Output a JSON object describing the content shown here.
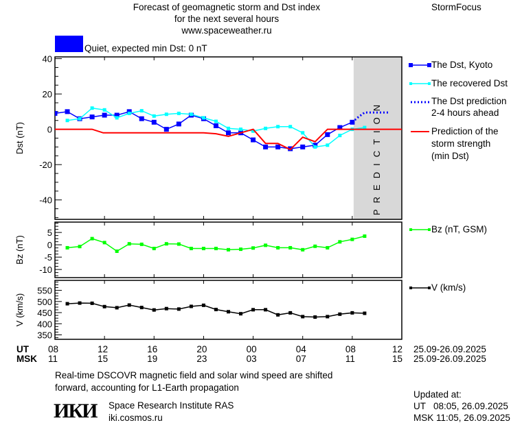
{
  "header": {
    "title_lines": [
      "Forecast of geomagnetic storm and Dst index",
      "for the next several hours",
      "www.spaceweather.ru"
    ],
    "brand": "StormFocus",
    "status_text": "Quiet, expected min Dst: 0 nT",
    "status_color": "#0000ff"
  },
  "chart_data": [
    {
      "type": "line",
      "panel": "dst",
      "ylabel": "Dst (nT)",
      "ylim": [
        -51,
        41
      ],
      "yticks": [
        40,
        20,
        0,
        -20,
        -40
      ],
      "xlim": [
        0,
        28
      ],
      "x_unit": "hours since 08 UT 25.09.2025",
      "prediction_zone": {
        "from": 24,
        "to": 28,
        "label": "PREDICTION",
        "color": "#d8d8d8"
      },
      "series": [
        {
          "name": "The Dst, Kyoto",
          "color": "#0000ff",
          "marker": "square",
          "x": [
            0,
            1,
            2,
            3,
            4,
            5,
            6,
            7,
            8,
            9,
            10,
            11,
            12,
            13,
            14,
            15,
            16,
            17,
            18,
            19,
            20,
            21,
            22,
            23,
            24
          ],
          "y": [
            9,
            10,
            6,
            7,
            8,
            8,
            10,
            6,
            4,
            0,
            3,
            8,
            6,
            2,
            -2,
            -2,
            -6,
            -10,
            -10,
            -11,
            -10,
            -9,
            -3,
            1,
            4
          ]
        },
        {
          "name": "The recovered Dst",
          "color": "#00ffff",
          "marker": "square",
          "x": [
            1,
            2,
            3,
            4,
            5,
            6,
            7,
            8,
            9,
            10,
            11,
            12,
            13,
            14,
            15,
            16,
            17,
            18,
            19,
            20,
            21,
            22,
            23,
            24,
            25
          ],
          "y": [
            5,
            6,
            12,
            11,
            6.5,
            9,
            10.5,
            7.5,
            8.5,
            9,
            8.5,
            6.5,
            4.5,
            0.5,
            0,
            -1,
            0.5,
            1.5,
            1.5,
            -2,
            -10,
            -9,
            -3.5,
            0,
            1
          ]
        },
        {
          "name": "The Dst prediction 2-4 hours ahead",
          "color": "#0000ff",
          "style": "dotted",
          "x": [
            24,
            24.5,
            25,
            27
          ],
          "y": [
            4,
            7,
            9.5,
            9.5
          ]
        },
        {
          "name": "Prediction of the storm strength (min Dst)",
          "color": "#ff0000",
          "x": [
            0,
            3,
            3.9,
            12,
            13,
            14,
            15,
            16,
            17,
            18,
            19,
            20,
            21,
            22,
            28
          ],
          "y": [
            0,
            0,
            -2,
            -2,
            -2.5,
            -4,
            -2,
            0,
            -8,
            -8,
            -11.5,
            -4.5,
            -7,
            0,
            0
          ]
        }
      ]
    },
    {
      "type": "line",
      "panel": "bz",
      "ylabel": "Bz (nT)",
      "ylim": [
        -13.3,
        9.2
      ],
      "yticks": [
        5,
        0,
        -5,
        -10
      ],
      "xlim": [
        0,
        28
      ],
      "series": [
        {
          "name": "Bz (nT, GSM)",
          "color": "#00ff00",
          "marker": "square",
          "x": [
            1,
            2,
            3,
            4,
            5,
            6,
            7,
            8,
            9,
            10,
            11,
            12,
            13,
            14,
            15,
            16,
            17,
            18,
            19,
            20,
            21,
            22,
            23,
            24,
            25
          ],
          "y": [
            -1.2,
            -0.7,
            2.5,
            0.9,
            -2.6,
            0.4,
            0.2,
            -1.5,
            0.4,
            0.3,
            -1.5,
            -1.5,
            -1.5,
            -2,
            -1.8,
            -1.3,
            -0.2,
            -1.2,
            -1.2,
            -2,
            -0.6,
            -1.2,
            1.2,
            2.2,
            3.5
          ]
        }
      ]
    },
    {
      "type": "line",
      "panel": "v",
      "ylabel": "V (km/s)",
      "ylim": [
        330,
        595
      ],
      "yticks": [
        550,
        500,
        450,
        400,
        350
      ],
      "xlim": [
        0,
        28
      ],
      "series": [
        {
          "name": "V (km/s)",
          "color": "#000000",
          "marker": "square",
          "x": [
            1,
            2,
            3,
            4,
            5,
            6,
            7,
            8,
            9,
            10,
            11,
            12,
            13,
            14,
            15,
            16,
            17,
            18,
            19,
            20,
            21,
            22,
            23,
            24,
            25
          ],
          "y": [
            490,
            493,
            492,
            477,
            472,
            484,
            473,
            462,
            468,
            466,
            478,
            483,
            464,
            454,
            445,
            463,
            463,
            440,
            449,
            432,
            430,
            432,
            443,
            449,
            447
          ]
        }
      ]
    }
  ],
  "xaxis": {
    "ut_label": "UT",
    "msk_label": "MSK",
    "ut_ticks": [
      "08",
      "12",
      "16",
      "20",
      "00",
      "04",
      "08",
      "12"
    ],
    "msk_ticks": [
      "11",
      "15",
      "19",
      "23",
      "03",
      "07",
      "11",
      "15"
    ],
    "ut_range": "25.09-26.09.2025",
    "msk_range": "25.09-26.09.2025"
  },
  "legend": {
    "dst_kyoto": "The Dst, Kyoto",
    "recovered": "The recovered Dst",
    "prediction_lines": [
      "The Dst prediction",
      "2-4 hours ahead"
    ],
    "storm_lines": [
      "Prediction of the",
      "storm strength",
      "(min Dst)"
    ],
    "bz": "Bz (nT, GSM)",
    "v": "V (km/s)"
  },
  "footer": {
    "note_lines": [
      "Real-time DSCOVR magnetic field and solar wind speed are shifted",
      "forward, accounting for L1-Earth propagation"
    ],
    "logo_text": "ИКИ",
    "institute": "Space Research Institute RAS",
    "site": "iki.cosmos.ru",
    "updated_label": "Updated at:",
    "updated_ut": "UT   08:05, 26.09.2025",
    "updated_msk": "MSK 11:05, 26.09.2025"
  }
}
